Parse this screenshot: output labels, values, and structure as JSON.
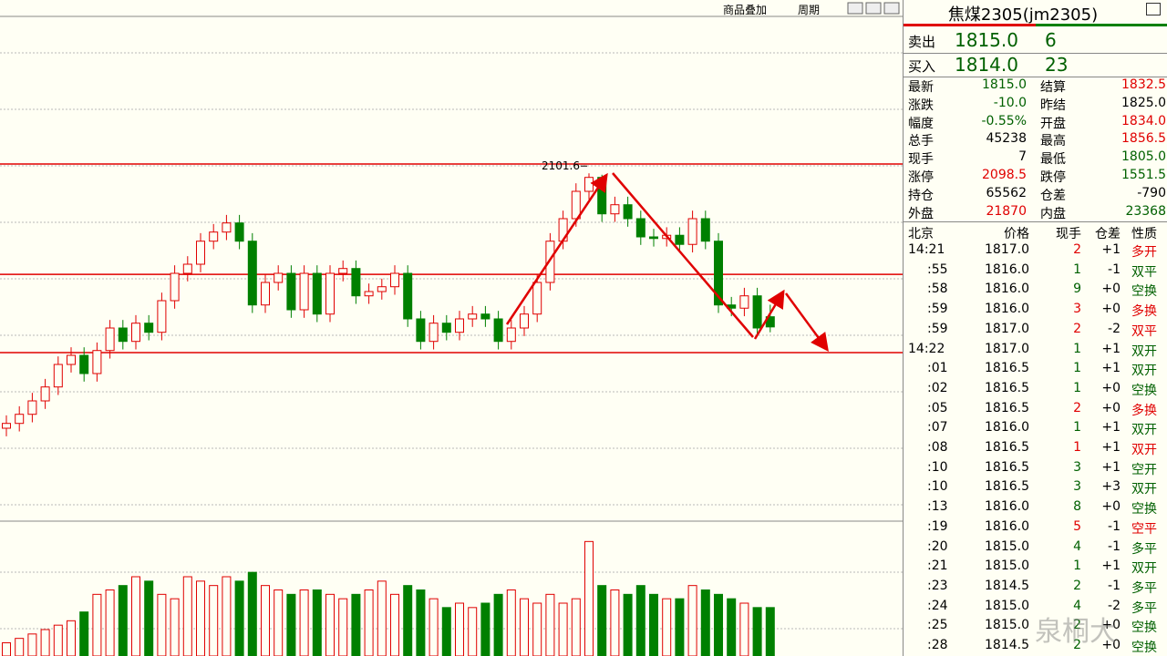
{
  "toolbar": [
    "商品叠加",
    "周期"
  ],
  "chart_data": {
    "type": "candlestick",
    "annotation": "2101.6",
    "annotation_value": 2101.6,
    "ylim": [
      1456,
      2425
    ],
    "open": [
      1626,
      1635,
      1652,
      1677,
      1703,
      1745,
      1762,
      1728,
      1771,
      1813,
      1788,
      1822,
      1805,
      1864,
      1915,
      1932,
      1975,
      1992,
      2009,
      1975,
      1856,
      1898,
      1915,
      1847,
      1915,
      1839,
      1915,
      1924,
      1873,
      1881,
      1890,
      1915,
      1830,
      1788,
      1822,
      1805,
      1830,
      1839,
      1830,
      1788,
      1813,
      1839,
      1898,
      1975,
      2017,
      2068,
      2094,
      2026,
      2043,
      2017,
      1983,
      1980,
      1986,
      1969,
      2017,
      1975,
      1856,
      1850,
      1873,
      1834
    ],
    "high": [
      1650,
      1667,
      1692,
      1718,
      1760,
      1777,
      1777,
      1786,
      1828,
      1828,
      1837,
      1837,
      1879,
      1930,
      1947,
      1990,
      2007,
      2024,
      2024,
      1990,
      1913,
      1930,
      1930,
      1930,
      1930,
      1930,
      1939,
      1939,
      1896,
      1905,
      1930,
      1930,
      1845,
      1837,
      1837,
      1845,
      1854,
      1854,
      1845,
      1828,
      1854,
      1913,
      1990,
      2032,
      2083,
      2101.6,
      2099,
      2058,
      2058,
      2032,
      1998,
      2001,
      2001,
      2032,
      2032,
      1990,
      1871,
      1888,
      1888,
      1856.5
    ],
    "low": [
      1611,
      1620,
      1637,
      1662,
      1688,
      1730,
      1713,
      1713,
      1756,
      1773,
      1773,
      1790,
      1790,
      1849,
      1900,
      1917,
      1960,
      1977,
      1960,
      1841,
      1841,
      1883,
      1832,
      1832,
      1824,
      1824,
      1900,
      1858,
      1858,
      1866,
      1875,
      1815,
      1773,
      1773,
      1790,
      1790,
      1815,
      1815,
      1773,
      1773,
      1798,
      1824,
      1883,
      1960,
      2002,
      2053,
      2011,
      2011,
      2002,
      1968,
      1965,
      1965,
      1954,
      1954,
      1960,
      1841,
      1835,
      1835,
      1798,
      1805
    ],
    "close": [
      1635,
      1652,
      1677,
      1703,
      1745,
      1762,
      1728,
      1771,
      1813,
      1788,
      1822,
      1805,
      1864,
      1915,
      1932,
      1975,
      1992,
      2009,
      1975,
      1856,
      1898,
      1915,
      1847,
      1915,
      1839,
      1915,
      1924,
      1873,
      1881,
      1890,
      1915,
      1830,
      1788,
      1822,
      1805,
      1830,
      1839,
      1830,
      1788,
      1813,
      1839,
      1898,
      1975,
      2017,
      2068,
      2094,
      2026,
      2043,
      2017,
      1983,
      1980,
      1986,
      1969,
      2017,
      1975,
      1856,
      1850,
      1873,
      1813,
      1815
    ],
    "volume": [
      15,
      20,
      25,
      30,
      35,
      40,
      50,
      70,
      75,
      80,
      90,
      85,
      70,
      65,
      90,
      85,
      80,
      90,
      85,
      95,
      80,
      75,
      70,
      75,
      75,
      70,
      65,
      70,
      75,
      85,
      70,
      80,
      75,
      65,
      55,
      60,
      55,
      60,
      70,
      75,
      65,
      60,
      70,
      60,
      65,
      130,
      80,
      75,
      70,
      80,
      70,
      65,
      65,
      80,
      75,
      70,
      65,
      60,
      55,
      55
    ],
    "volume_ylim": [
      0,
      150
    ],
    "up_color": "#e00000",
    "down_color": "#008000",
    "reference_lines": [
      2119,
      1913,
      1767
    ],
    "reference_color": "#e00000"
  },
  "quote": {
    "title": "焦煤2305(jm2305)",
    "ask": [
      "卖出",
      "1815.0",
      "6"
    ],
    "bid": [
      "买入",
      "1814.0",
      "23"
    ],
    "stats": [
      [
        {
          "t": "最新",
          "c": "#000"
        },
        {
          "t": "1815.0",
          "c": "#006000"
        },
        {
          "t": "结算",
          "c": "#000"
        },
        {
          "t": "1832.5",
          "c": "#e00000"
        }
      ],
      [
        {
          "t": "涨跌",
          "c": "#000"
        },
        {
          "t": "-10.0",
          "c": "#006000"
        },
        {
          "t": "昨结",
          "c": "#000"
        },
        {
          "t": "1825.0",
          "c": "#000"
        }
      ],
      [
        {
          "t": "幅度",
          "c": "#000"
        },
        {
          "t": "-0.55%",
          "c": "#006000"
        },
        {
          "t": "开盘",
          "c": "#000"
        },
        {
          "t": "1834.0",
          "c": "#e00000"
        }
      ],
      [
        {
          "t": "总手",
          "c": "#000"
        },
        {
          "t": "45238",
          "c": "#000"
        },
        {
          "t": "最高",
          "c": "#000"
        },
        {
          "t": "1856.5",
          "c": "#e00000"
        }
      ],
      [
        {
          "t": "现手",
          "c": "#000"
        },
        {
          "t": "7",
          "c": "#000"
        },
        {
          "t": "最低",
          "c": "#000"
        },
        {
          "t": "1805.0",
          "c": "#006000"
        }
      ],
      [
        {
          "t": "涨停",
          "c": "#000"
        },
        {
          "t": "2098.5",
          "c": "#e00000"
        },
        {
          "t": "跌停",
          "c": "#000"
        },
        {
          "t": "1551.5",
          "c": "#006000"
        }
      ],
      [
        {
          "t": "持仓",
          "c": "#000"
        },
        {
          "t": "65562",
          "c": "#000"
        },
        {
          "t": "仓差",
          "c": "#000"
        },
        {
          "t": "-790",
          "c": "#000"
        }
      ],
      [
        {
          "t": "外盘",
          "c": "#000"
        },
        {
          "t": "21870",
          "c": "#e00000"
        },
        {
          "t": "内盘",
          "c": "#000"
        },
        {
          "t": "23368",
          "c": "#006000"
        }
      ]
    ],
    "trade_header": [
      "北京",
      "价格",
      "现手",
      "仓差",
      "性质"
    ],
    "trades": [
      {
        "cells": [
          "14:21",
          "1817.0",
          "2",
          "+1",
          "多开"
        ],
        "color": "#e00000"
      },
      {
        "cells": [
          ":55",
          "1816.0",
          "1",
          "-1",
          "双平"
        ],
        "color": "#006000"
      },
      {
        "cells": [
          ":58",
          "1816.0",
          "9",
          "+0",
          "空换"
        ],
        "color": "#006000"
      },
      {
        "cells": [
          ":59",
          "1816.0",
          "3",
          "+0",
          "多换"
        ],
        "color": "#e00000"
      },
      {
        "cells": [
          ":59",
          "1817.0",
          "2",
          "-2",
          "双平"
        ],
        "color": "#e00000"
      },
      {
        "cells": [
          "14:22",
          "1817.0",
          "1",
          "+1",
          "双开"
        ],
        "color": "#006000"
      },
      {
        "cells": [
          ":01",
          "1816.5",
          "1",
          "+1",
          "双开"
        ],
        "color": "#006000"
      },
      {
        "cells": [
          ":02",
          "1816.5",
          "1",
          "+0",
          "空换"
        ],
        "color": "#006000"
      },
      {
        "cells": [
          ":05",
          "1816.5",
          "2",
          "+0",
          "多换"
        ],
        "color": "#e00000"
      },
      {
        "cells": [
          ":07",
          "1816.0",
          "1",
          "+1",
          "双开"
        ],
        "color": "#006000"
      },
      {
        "cells": [
          ":08",
          "1816.5",
          "1",
          "+1",
          "双开"
        ],
        "color": "#e00000"
      },
      {
        "cells": [
          ":10",
          "1816.5",
          "3",
          "+1",
          "空开"
        ],
        "color": "#006000"
      },
      {
        "cells": [
          ":10",
          "1816.5",
          "3",
          "+3",
          "双开"
        ],
        "color": "#006000"
      },
      {
        "cells": [
          ":13",
          "1816.0",
          "8",
          "+0",
          "空换"
        ],
        "color": "#006000"
      },
      {
        "cells": [
          ":19",
          "1816.0",
          "5",
          "-1",
          "空平"
        ],
        "color": "#e00000"
      },
      {
        "cells": [
          ":20",
          "1815.0",
          "4",
          "-1",
          "多平"
        ],
        "color": "#006000"
      },
      {
        "cells": [
          ":21",
          "1815.0",
          "1",
          "+1",
          "双开"
        ],
        "color": "#006000"
      },
      {
        "cells": [
          ":23",
          "1814.5",
          "2",
          "-1",
          "多平"
        ],
        "color": "#006000"
      },
      {
        "cells": [
          ":24",
          "1815.0",
          "4",
          "-2",
          "多平"
        ],
        "color": "#006000"
      },
      {
        "cells": [
          ":25",
          "1815.0",
          "2",
          "+0",
          "空换"
        ],
        "color": "#006000"
      },
      {
        "cells": [
          ":28",
          "1814.5",
          "2",
          "+0",
          "空换"
        ],
        "color": "#006000"
      }
    ]
  },
  "watermark": "泉桐大"
}
